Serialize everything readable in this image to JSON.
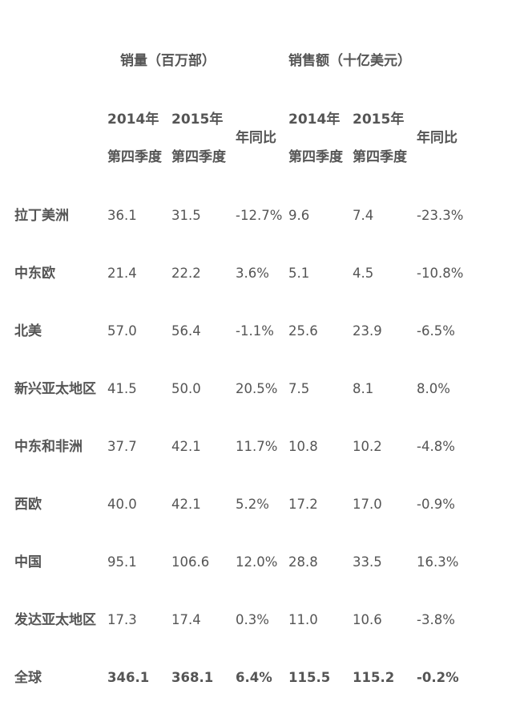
{
  "group_headers": {
    "units": "销量（百万部）",
    "revenue": "销售额（十亿美元）"
  },
  "column_headers": {
    "units_2014": {
      "line1": "2014年",
      "line2": "第四季度"
    },
    "units_2015": {
      "line1": "2015年",
      "line2": "第四季度"
    },
    "units_yoy": "年同比",
    "revenue_2014": {
      "line1": "2014年",
      "line2": "第四季度"
    },
    "revenue_2015": {
      "line1": "2015年",
      "line2": "第四季度"
    },
    "revenue_yoy": "年同比"
  },
  "rows": [
    {
      "region": "拉丁美洲",
      "u2014": "36.1",
      "u2015": "31.5",
      "uyoy": "-12.7%",
      "r2014": "9.6",
      "r2015": "7.4",
      "ryoy": "-23.3%"
    },
    {
      "region": "中东欧",
      "u2014": "21.4",
      "u2015": "22.2",
      "uyoy": "3.6%",
      "r2014": "5.1",
      "r2015": "4.5",
      "ryoy": "-10.8%"
    },
    {
      "region": "北美",
      "u2014": "57.0",
      "u2015": "56.4",
      "uyoy": "-1.1%",
      "r2014": "25.6",
      "r2015": "23.9",
      "ryoy": "-6.5%"
    },
    {
      "region": "新兴亚太地区",
      "u2014": "41.5",
      "u2015": "50.0",
      "uyoy": "20.5%",
      "r2014": "7.5",
      "r2015": "8.1",
      "ryoy": "8.0%"
    },
    {
      "region": "中东和非洲",
      "u2014": "37.7",
      "u2015": "42.1",
      "uyoy": "11.7%",
      "r2014": "10.8",
      "r2015": "10.2",
      "ryoy": "-4.8%"
    },
    {
      "region": "西欧",
      "u2014": "40.0",
      "u2015": "42.1",
      "uyoy": "5.2%",
      "r2014": "17.2",
      "r2015": "17.0",
      "ryoy": "-0.9%"
    },
    {
      "region": "中国",
      "u2014": "95.1",
      "u2015": "106.6",
      "uyoy": "12.0%",
      "r2014": "28.8",
      "r2015": "33.5",
      "ryoy": "16.3%"
    },
    {
      "region": "发达亚太地区",
      "u2014": "17.3",
      "u2015": "17.4",
      "uyoy": "0.3%",
      "r2014": "11.0",
      "r2015": "10.6",
      "ryoy": "-3.8%"
    },
    {
      "region": "全球",
      "u2014": "346.1",
      "u2015": "368.1",
      "uyoy": "6.4%",
      "r2014": "115.5",
      "r2015": "115.2",
      "ryoy": "-0.2%"
    }
  ]
}
